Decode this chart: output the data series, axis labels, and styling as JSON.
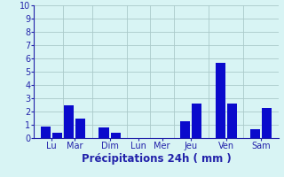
{
  "bars": [
    {
      "x": 1,
      "height": 0.9
    },
    {
      "x": 2,
      "height": 0.4
    },
    {
      "x": 3,
      "height": 2.5
    },
    {
      "x": 4,
      "height": 1.5
    },
    {
      "x": 6,
      "height": 0.8
    },
    {
      "x": 7,
      "height": 0.4
    },
    {
      "x": 9,
      "height": 0.0
    },
    {
      "x": 11,
      "height": 0.0
    },
    {
      "x": 13,
      "height": 1.3
    },
    {
      "x": 14,
      "height": 2.6
    },
    {
      "x": 16,
      "height": 5.7
    },
    {
      "x": 17,
      "height": 2.6
    },
    {
      "x": 19,
      "height": 0.7
    },
    {
      "x": 20,
      "height": 2.3
    }
  ],
  "day_tick_positions": [
    1.5,
    3.5,
    6.5,
    9,
    11,
    13.5,
    16.5,
    19.5
  ],
  "day_labels": [
    "Lu",
    "Mar",
    "Dim",
    "Lun",
    "Mer",
    "Jeu",
    "Ven",
    "Sam"
  ],
  "separator_positions": [
    2.5,
    5.0,
    8.0,
    10.0,
    12.0,
    15.0,
    18.0
  ],
  "xlabel": "Précipitations 24h ( mm )",
  "ylim": [
    0,
    10
  ],
  "xlim": [
    0,
    21
  ],
  "yticks": [
    0,
    1,
    2,
    3,
    4,
    5,
    6,
    7,
    8,
    9,
    10
  ],
  "bar_color": "#0a0acc",
  "background_color": "#d8f4f4",
  "grid_color": "#aacaca",
  "axis_color": "#2222aa",
  "bar_width": 0.85,
  "xlabel_fontsize": 8.5,
  "ytick_fontsize": 7,
  "xtick_fontsize": 7
}
